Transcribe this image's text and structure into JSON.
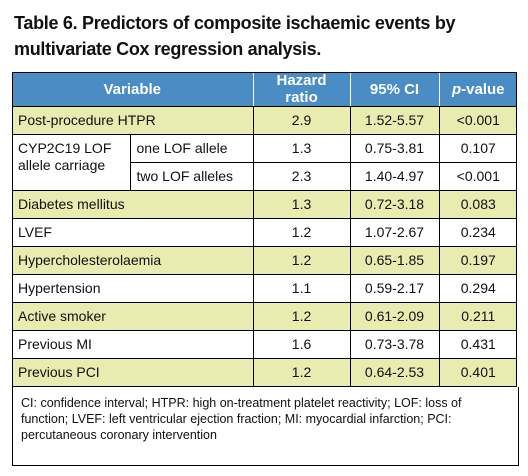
{
  "title": "Table 6. Predictors of composite ischaemic events by multivariate Cox regression analysis.",
  "headers": {
    "variable": "Variable",
    "hazard_ratio": "Hazard ratio",
    "ci": "95% CI",
    "p_prefix": "p",
    "p_suffix": "-value"
  },
  "rows": [
    {
      "variable": "Post-procedure HTPR",
      "hr": "2.9",
      "ci": "1.52-5.57",
      "p": "<0.001"
    },
    {
      "variable": "CYP2C19 LOF allele carriage",
      "sub": "one LOF allele",
      "hr": "1.3",
      "ci": "0.75-3.81",
      "p": "0.107"
    },
    {
      "sub": "two LOF alleles",
      "hr": "2.3",
      "ci": "1.40-4.97",
      "p": "<0.001"
    },
    {
      "variable": "Diabetes mellitus",
      "hr": "1.3",
      "ci": "0.72-3.18",
      "p": "0.083"
    },
    {
      "variable": "LVEF",
      "hr": "1.2",
      "ci": "1.07-2.67",
      "p": "0.234"
    },
    {
      "variable": "Hypercholesterolaemia",
      "hr": "1.2",
      "ci": "0.65-1.85",
      "p": "0.197"
    },
    {
      "variable": "Hypertension",
      "hr": "1.1",
      "ci": "0.59-2.17",
      "p": "0.294"
    },
    {
      "variable": "Active smoker",
      "hr": "1.2",
      "ci": "0.61-2.09",
      "p": "0.211"
    },
    {
      "variable": "Previous MI",
      "hr": "1.6",
      "ci": "0.73-3.78",
      "p": "0.431"
    },
    {
      "variable": "Previous PCI",
      "hr": "1.2",
      "ci": "0.64-2.53",
      "p": "0.401"
    }
  ],
  "footnote": "CI: confidence interval; HTPR: high on-treatment platelet reactivity; LOF: loss of function; LVEF: left ventricular ejection fraction; MI: myocardial infarction; PCI: percutaneous coronary intervention",
  "colors": {
    "header_bg": "#4a8cc4",
    "odd_row_bg": "#e9ecb0",
    "even_row_bg": "#ffffff"
  }
}
